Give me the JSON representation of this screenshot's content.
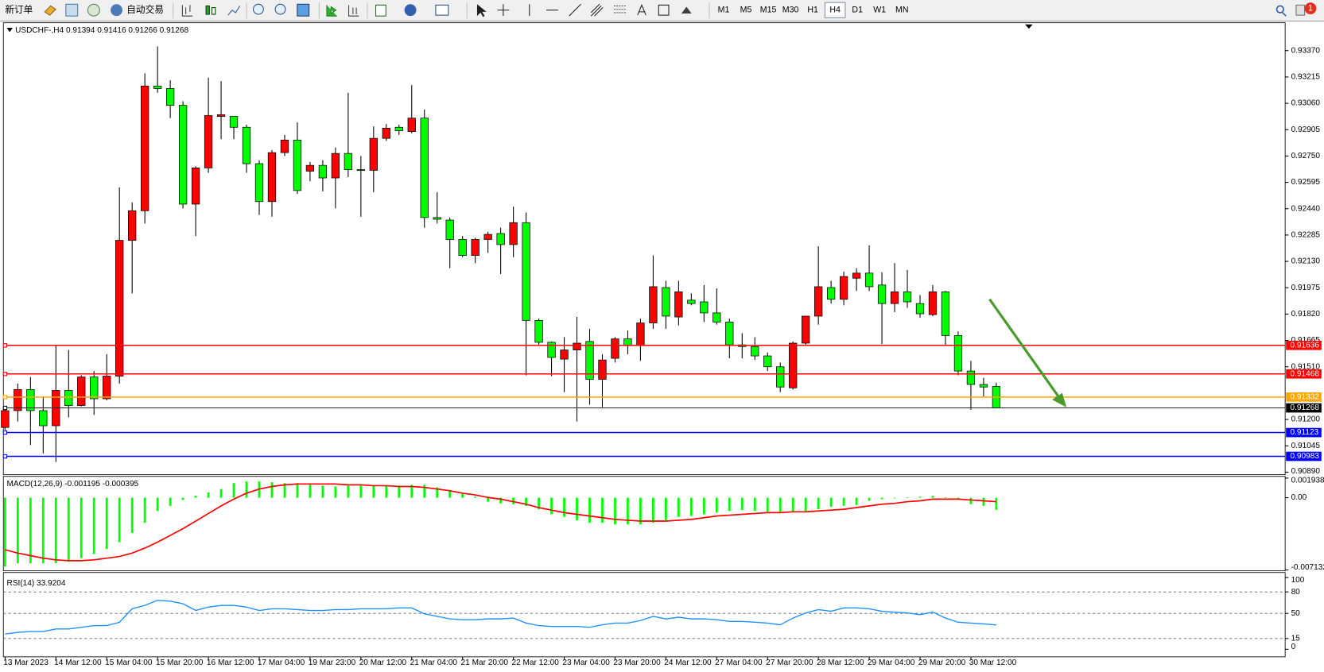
{
  "toolbar": {
    "new_order": "新订单",
    "auto_trading": "自动交易",
    "timeframes": [
      "M1",
      "M5",
      "M15",
      "M30",
      "H1",
      "H4",
      "D1",
      "W1",
      "MN"
    ],
    "active_timeframe": "H4",
    "notifications": 1
  },
  "chart_data": [
    {
      "type": "candlestick",
      "title": "USDCHF-,H4 0.91394 0.91416 0.91266 0.91268",
      "categories": [
        "13 Mar 2023",
        null,
        null,
        null,
        "14 Mar 12:00",
        null,
        null,
        null,
        "15 Mar 04:00",
        null,
        null,
        null,
        "15 Mar 20:00",
        null,
        null,
        null,
        "16 Mar 12:00",
        null,
        null,
        null,
        "17 Mar 04:00",
        null,
        null,
        null,
        "19 Mar 23:00",
        null,
        null,
        null,
        "20 Mar 12:00",
        null,
        null,
        null,
        "21 Mar 04:00",
        null,
        null,
        null,
        "21 Mar 20:00",
        null,
        null,
        null,
        "22 Mar 12:00",
        null,
        null,
        null,
        "23 Mar 04:00",
        null,
        null,
        null,
        "23 Mar 20:00",
        null,
        null,
        null,
        "24 Mar 12:00",
        null,
        null,
        null,
        "27 Mar 04:00",
        null,
        null,
        null,
        "27 Mar 20:00",
        null,
        null,
        null,
        "28 Mar 12:00",
        null,
        null,
        null,
        "29 Mar 04:00",
        null,
        null,
        null,
        "29 Mar 20:00",
        null,
        null,
        null,
        "30 Mar 12:00",
        null,
        null
      ],
      "open": [
        0.91153,
        0.91252,
        0.91376,
        0.91252,
        0.91163,
        0.91371,
        0.91282,
        0.9145,
        0.91322,
        0.91455,
        0.92254,
        0.92428,
        0.93162,
        0.93147,
        0.93048,
        0.92467,
        0.9268,
        0.92983,
        0.92983,
        0.92919,
        0.92705,
        0.92482,
        0.9277,
        0.92844,
        0.92661,
        0.92695,
        0.92621,
        0.92765,
        0.9267,
        0.92666,
        0.92854,
        0.92919,
        0.92894,
        0.92973,
        0.92388,
        0.92373,
        0.92259,
        0.92165,
        0.92259,
        0.92294,
        0.92229,
        0.92358,
        0.91783,
        0.91654,
        0.91555,
        0.91609,
        0.91659,
        0.91436,
        0.9156,
        0.91674,
        0.91634,
        0.91768,
        0.91976,
        0.91803,
        0.91902,
        0.91892,
        0.91827,
        0.91773,
        0.91639,
        0.91629,
        0.91574,
        0.9151,
        0.91386,
        0.91649,
        0.91808,
        0.91976,
        0.91907,
        0.92031,
        0.92061,
        0.91991,
        0.91882,
        0.91951,
        0.91882,
        0.91817,
        0.91951,
        0.91694,
        0.91485,
        0.91406,
        0.91394
      ],
      "high": [
        0.91277,
        0.91411,
        0.9145,
        0.91336,
        0.91634,
        0.91609,
        0.9146,
        0.91485,
        0.91584,
        0.92566,
        0.92477,
        0.93236,
        0.93395,
        0.93196,
        0.93072,
        0.9269,
        0.93211,
        0.93191,
        0.92983,
        0.92934,
        0.92725,
        0.92785,
        0.92874,
        0.92948,
        0.92715,
        0.92725,
        0.928,
        0.93122,
        0.9275,
        0.92924,
        0.92938,
        0.92934,
        0.93167,
        0.93023,
        0.92537,
        0.92388,
        0.92279,
        0.92269,
        0.92304,
        0.92328,
        0.92452,
        0.92418,
        0.91793,
        0.91659,
        0.91684,
        0.91803,
        0.91733,
        0.91584,
        0.91684,
        0.91723,
        0.91793,
        0.92165,
        0.92016,
        0.92016,
        0.91942,
        0.91991,
        0.91971,
        0.91793,
        0.91708,
        0.91684,
        0.91594,
        0.91535,
        0.91659,
        0.91808,
        0.92219,
        0.92016,
        0.9207,
        0.9209,
        0.92224,
        0.92066,
        0.9212,
        0.9208,
        0.91932,
        0.91991,
        0.91956,
        0.91718,
        0.91545,
        0.91445,
        0.91416
      ],
      "low": [
        0.91138,
        0.91188,
        0.91049,
        0.91,
        0.9095,
        0.91212,
        0.91277,
        0.91227,
        0.91312,
        0.91411,
        0.91942,
        0.92353,
        0.93122,
        0.92973,
        0.92442,
        0.92279,
        0.92651,
        0.92849,
        0.92849,
        0.92651,
        0.92403,
        0.92393,
        0.9275,
        0.92527,
        0.92601,
        0.92542,
        0.92442,
        0.92626,
        0.92393,
        0.92537,
        0.92839,
        0.92874,
        0.92884,
        0.92328,
        0.92353,
        0.9209,
        0.92155,
        0.9212,
        0.9218,
        0.92056,
        0.92155,
        0.9146,
        0.91634,
        0.91455,
        0.91361,
        0.91188,
        0.91287,
        0.91272,
        0.91535,
        0.91584,
        0.91545,
        0.91733,
        0.91733,
        0.91753,
        0.91872,
        0.91773,
        0.91758,
        0.9156,
        0.9156,
        0.9155,
        0.91485,
        0.91361,
        0.91376,
        0.91634,
        0.91758,
        0.91882,
        0.91872,
        0.91956,
        0.91956,
        0.91644,
        0.91832,
        0.91857,
        0.91798,
        0.91808,
        0.91634,
        0.9146,
        0.91257,
        0.91336,
        0.91266
      ],
      "close": [
        0.91252,
        0.91376,
        0.91252,
        0.91163,
        0.91371,
        0.91282,
        0.9145,
        0.91322,
        0.91455,
        0.92254,
        0.92428,
        0.93162,
        0.93147,
        0.93048,
        0.92467,
        0.9268,
        0.92988,
        0.92993,
        0.92919,
        0.92705,
        0.92482,
        0.9277,
        0.92844,
        0.92547,
        0.92695,
        0.92621,
        0.92765,
        0.9267,
        0.92666,
        0.92854,
        0.92914,
        0.92899,
        0.92973,
        0.92388,
        0.92378,
        0.92259,
        0.92165,
        0.92259,
        0.92289,
        0.92229,
        0.92358,
        0.91783,
        0.91654,
        0.91565,
        0.91609,
        0.91649,
        0.91436,
        0.9155,
        0.91674,
        0.91634,
        0.91768,
        0.91981,
        0.91808,
        0.91951,
        0.91882,
        0.91827,
        0.91773,
        0.91639,
        0.91629,
        0.91574,
        0.9151,
        0.91391,
        0.91649,
        0.91808,
        0.91981,
        0.91907,
        0.92041,
        0.92061,
        0.91981,
        0.91882,
        0.91951,
        0.91892,
        0.91822,
        0.91951,
        0.91694,
        0.91485,
        0.91406,
        0.91391,
        0.91268
      ],
      "up_color": "#ff0000",
      "down_color": "#00ff00",
      "levels": [
        {
          "value": 0.91636,
          "color": "#ff0000"
        },
        {
          "value": 0.91468,
          "color": "#ff0000"
        },
        {
          "value": 0.91332,
          "color": "#ffa500"
        },
        {
          "value": 0.91268,
          "color": "#000000"
        },
        {
          "value": 0.91123,
          "color": "#0000ff"
        },
        {
          "value": 0.90983,
          "color": "#0000ff"
        }
      ],
      "ylim": [
        0.9088,
        0.93529
      ],
      "yticks": [
        {
          "value": 0.9337,
          "label": "0.93370"
        },
        0.93215,
        {
          "value": 0.9306,
          "label": "0.93060"
        },
        0.92905,
        {
          "value": 0.9275,
          "label": "0.92750"
        },
        0.92595,
        {
          "value": 0.9244,
          "label": "0.92440"
        },
        0.92285,
        {
          "value": 0.9213,
          "label": "0.92130"
        },
        0.91975,
        {
          "value": 0.9182,
          "label": "0.91820"
        },
        0.91665,
        {
          "value": 0.9151,
          "label": "0.91510"
        },
        {
          "value": 0.912,
          "label": "0.91200"
        },
        0.91045,
        {
          "value": 0.9089,
          "label": "0.90890"
        }
      ]
    },
    {
      "type": "macd",
      "title": "MACD(12,26,9) -0.001195 -0.000395",
      "series": [
        {
          "color": "#00ff00",
          "values": [
            -0.006797,
            -0.006465,
            -0.006465,
            -0.006465,
            -0.006465,
            -0.006298,
            -0.005965,
            -0.005549,
            -0.00505,
            -0.004385,
            -0.003469,
            -0.002471,
            -0.001306,
            -0.000807,
            -0.000225,
            0.000191,
            0.000524,
            0.000857,
            0.001439,
            0.001606,
            0.001606,
            0.001523,
            0.001439,
            0.001439,
            0.001273,
            0.00119,
            0.001107,
            0.00119,
            0.00119,
            0.00119,
            0.00119,
            0.00119,
            0.001273,
            0.001273,
            0.001023,
            0.000774,
            0.000358,
            0.000108,
            -0.000391,
            -0.000557,
            -0.000641,
            -0.000807,
            -0.00114,
            -0.001639,
            -0.001889,
            -0.002221,
            -0.002471,
            -0.002471,
            -0.002637,
            -0.002637,
            -0.002637,
            -0.002471,
            -0.002221,
            -0.001889,
            -0.001805,
            -0.001639,
            -0.001473,
            -0.001306,
            -0.001223,
            -0.001306,
            -0.001389,
            -0.001389,
            -0.001389,
            -0.001306,
            -0.00114,
            -0.00089,
            -0.000807,
            -0.000724,
            -0.000308,
            -0.000141,
            -5.8e-05,
            2.5e-05,
            0.000108,
            0.000191,
            2.5e-05,
            -0.000141,
            -0.000641,
            -0.000807,
            -0.001195
          ]
        },
        {
          "color": "#ff0000",
          "values": [
            -0.005133,
            -0.005466,
            -0.005716,
            -0.005965,
            -0.006132,
            -0.006215,
            -0.006215,
            -0.006132,
            -0.005965,
            -0.005799,
            -0.005466,
            -0.004967,
            -0.004385,
            -0.003719,
            -0.003053,
            -0.002305,
            -0.001556,
            -0.000807,
            -0.000141,
            0.000441,
            0.000857,
            0.001107,
            0.001273,
            0.001356,
            0.001356,
            0.001356,
            0.001356,
            0.001273,
            0.001273,
            0.00119,
            0.00119,
            0.001107,
            0.001107,
            0.001023,
            0.000857,
            0.000691,
            0.000441,
            0.000275,
            2.5e-05,
            -0.000141,
            -0.000391,
            -0.000641,
            -0.000973,
            -0.001223,
            -0.001473,
            -0.001639,
            -0.001805,
            -0.001972,
            -0.002138,
            -0.002221,
            -0.002305,
            -0.002305,
            -0.002305,
            -0.002221,
            -0.002138,
            -0.001972,
            -0.001805,
            -0.001722,
            -0.001639,
            -0.001556,
            -0.001473,
            -0.001473,
            -0.001389,
            -0.001389,
            -0.001306,
            -0.001223,
            -0.00114,
            -0.000973,
            -0.000807,
            -0.000641,
            -0.000557,
            -0.000391,
            -0.000308,
            -0.000141,
            -0.000141,
            -0.000141,
            -0.000225,
            -0.000308,
            -0.000395
          ]
        }
      ],
      "ylim": [
        -0.007132,
        0.001938
      ],
      "yticks": [
        0.001938,
        {
          "value": 0,
          "label": "0.00"
        },
        -0.007132
      ]
    },
    {
      "type": "line",
      "title": "RSI(14) 33.9204",
      "color": "#1e90ff",
      "values": [
        21.2,
        23.5,
        24.7,
        24.7,
        28.2,
        28.2,
        30.6,
        32.9,
        32.9,
        37.6,
        56.5,
        61.2,
        68.2,
        67.1,
        63.5,
        54.1,
        58.8,
        61.2,
        61.2,
        58.8,
        54.1,
        56.5,
        56.5,
        55.3,
        54.1,
        54.1,
        55.3,
        55.3,
        56.5,
        56.5,
        56.5,
        57.6,
        57.6,
        49.4,
        45.9,
        42.4,
        41.2,
        41.2,
        42.4,
        42.4,
        43.5,
        36.5,
        32.9,
        31.8,
        31.8,
        31.8,
        30.6,
        34.1,
        36.5,
        36.5,
        40,
        45.9,
        42.4,
        44.7,
        42.4,
        42.4,
        41.2,
        38.8,
        38.8,
        37.6,
        36.5,
        34.1,
        43.5,
        50.6,
        55.3,
        52.9,
        57.6,
        57.6,
        56.5,
        52.9,
        51.8,
        50.6,
        48.2,
        51.8,
        43.5,
        37.6,
        36.5,
        35.3,
        33.9204
      ],
      "levels": [
        80,
        50,
        15
      ],
      "ylim": [
        0,
        100
      ],
      "yticks": [
        100,
        80,
        50,
        15,
        0
      ]
    }
  ]
}
